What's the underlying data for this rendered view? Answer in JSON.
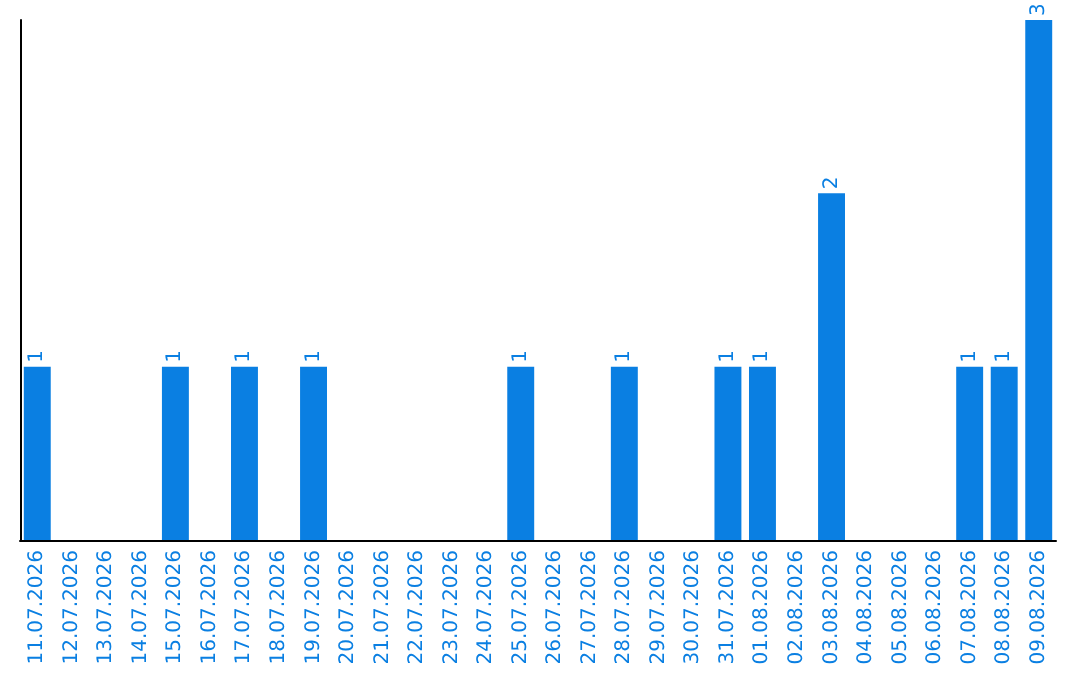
{
  "chart_data": {
    "type": "bar",
    "categories": [
      "11.07.2026",
      "12.07.2026",
      "13.07.2026",
      "14.07.2026",
      "15.07.2026",
      "16.07.2026",
      "17.07.2026",
      "18.07.2026",
      "19.07.2026",
      "20.07.2026",
      "21.07.2026",
      "22.07.2026",
      "23.07.2026",
      "24.07.2026",
      "25.07.2026",
      "26.07.2026",
      "27.07.2026",
      "28.07.2026",
      "29.07.2026",
      "30.07.2026",
      "31.07.2026",
      "01.08.2026",
      "02.08.2026",
      "03.08.2026",
      "04.08.2026",
      "05.08.2026",
      "06.08.2026",
      "07.08.2026",
      "08.08.2026",
      "09.08.2026"
    ],
    "values": [
      1,
      0,
      0,
      0,
      1,
      0,
      1,
      0,
      1,
      0,
      0,
      0,
      0,
      0,
      1,
      0,
      0,
      1,
      0,
      0,
      1,
      1,
      0,
      2,
      0,
      0,
      0,
      1,
      1,
      3
    ],
    "value_labels": [
      "1",
      null,
      null,
      null,
      "1",
      null,
      "1",
      null,
      "1",
      null,
      null,
      null,
      null,
      null,
      "1",
      null,
      null,
      "1",
      null,
      null,
      "1",
      "1",
      null,
      "2",
      null,
      null,
      null,
      "1",
      "1",
      "3"
    ],
    "color": "#0a7fe2",
    "tick_labels": "x"
  }
}
